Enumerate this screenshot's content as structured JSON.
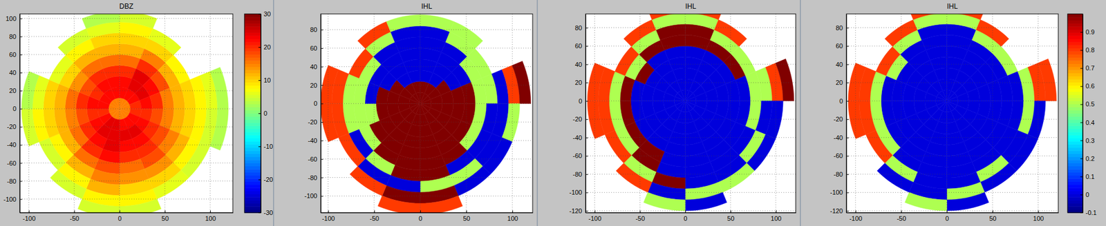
{
  "chart_data": [
    {
      "type": "heatmap",
      "title": "DBZ",
      "grid": true,
      "xlim": [
        -110,
        125
      ],
      "ylim": [
        -115,
        105
      ],
      "xticks": [
        -100,
        -50,
        0,
        50,
        100
      ],
      "yticks": [
        -100,
        -80,
        -60,
        -40,
        -20,
        0,
        20,
        40,
        60,
        80,
        100
      ],
      "azimuths": [
        0,
        22.5,
        45,
        67.5,
        90,
        112.5,
        135,
        157.5,
        180,
        202.5,
        225,
        247.5,
        270,
        292.5,
        315,
        337.5,
        360
      ],
      "ranges": [
        0,
        12,
        24,
        36,
        48,
        60,
        72,
        84,
        96,
        108,
        120
      ],
      "clim": [
        -30,
        30
      ],
      "colorbar_ticks": [
        -30,
        -20,
        -10,
        0,
        10,
        20,
        30
      ],
      "cells": [
        [
          15,
          22,
          22,
          20,
          16,
          12,
          10,
          8,
          5,
          null
        ],
        [
          15,
          22,
          24,
          24,
          20,
          15,
          10,
          6,
          null,
          null
        ],
        [
          15,
          22,
          24,
          22,
          18,
          12,
          8,
          null,
          null,
          null
        ],
        [
          15,
          20,
          22,
          20,
          15,
          12,
          10,
          8,
          6,
          3
        ],
        [
          15,
          20,
          20,
          18,
          15,
          12,
          10,
          8,
          5,
          3
        ],
        [
          15,
          22,
          22,
          20,
          18,
          15,
          12,
          8,
          5,
          null
        ],
        [
          15,
          22,
          24,
          22,
          20,
          18,
          14,
          10,
          6,
          null
        ],
        [
          15,
          22,
          24,
          22,
          20,
          16,
          14,
          10,
          8,
          5
        ],
        [
          15,
          24,
          24,
          24,
          22,
          18,
          15,
          12,
          8,
          5
        ],
        [
          15,
          24,
          24,
          22,
          20,
          16,
          12,
          8,
          5,
          null
        ],
        [
          15,
          22,
          22,
          20,
          16,
          12,
          8,
          5,
          null,
          null
        ],
        [
          15,
          20,
          20,
          18,
          15,
          12,
          10,
          8,
          5,
          null
        ],
        [
          15,
          22,
          22,
          20,
          16,
          12,
          10,
          6,
          3,
          null
        ],
        [
          15,
          22,
          20,
          18,
          14,
          10,
          6,
          null,
          null,
          null
        ],
        [
          15,
          22,
          22,
          20,
          16,
          12,
          8,
          5,
          null,
          null
        ],
        [
          15,
          22,
          22,
          20,
          16,
          12,
          10,
          6,
          3,
          null
        ]
      ]
    },
    {
      "type": "heatmap",
      "title": "IHL",
      "grid": true,
      "xlim": [
        -108,
        122
      ],
      "ylim": [
        -118,
        97
      ],
      "xticks": [
        -100,
        -50,
        0,
        50,
        100
      ],
      "yticks": [
        -100,
        -80,
        -60,
        -40,
        -20,
        0,
        20,
        40,
        60,
        80
      ],
      "azimuths": [
        0,
        22.5,
        45,
        67.5,
        90,
        112.5,
        135,
        157.5,
        180,
        202.5,
        225,
        247.5,
        270,
        292.5,
        315,
        337.5,
        360
      ],
      "ranges": [
        0,
        12,
        24,
        36,
        48,
        60,
        72,
        84,
        96,
        108,
        120
      ],
      "clim": [
        -0.1,
        1.0
      ],
      "cells": [
        [
          1,
          1,
          0,
          0,
          0,
          0,
          0,
          0.5,
          null,
          null
        ],
        [
          1,
          1,
          0,
          0,
          0,
          0,
          0.5,
          0.5,
          null,
          null
        ],
        [
          1,
          1,
          1,
          0,
          0,
          0.5,
          0.5,
          null,
          null,
          null
        ],
        [
          1,
          1,
          1,
          1,
          1,
          0.5,
          0.5,
          0,
          0.8,
          1
        ],
        [
          1,
          1,
          1,
          1,
          1,
          0.5,
          0,
          0,
          0.5,
          null
        ],
        [
          1,
          1,
          1,
          1,
          1,
          0.5,
          0,
          0,
          0,
          null
        ],
        [
          1,
          1,
          1,
          1,
          1,
          1,
          0,
          0.5,
          0,
          null
        ],
        [
          1,
          1,
          1,
          1,
          1,
          1,
          1,
          0.5,
          1,
          0.8
        ],
        [
          1,
          1,
          1,
          1,
          1,
          1,
          1,
          0,
          1,
          0.8
        ],
        [
          1,
          1,
          1,
          1,
          1,
          1,
          0.5,
          0,
          0.8,
          null
        ],
        [
          1,
          1,
          1,
          1,
          1,
          0.5,
          0,
          0.8,
          null,
          null
        ],
        [
          1,
          1,
          1,
          1,
          0.5,
          0.5,
          0.5,
          0.8,
          0.8,
          null
        ],
        [
          1,
          1,
          1,
          1,
          0,
          0.5,
          0.5,
          0.8,
          0.8,
          null
        ],
        [
          1,
          1,
          1,
          0,
          0,
          0.5,
          0.8,
          null,
          null,
          null
        ],
        [
          1,
          1,
          0,
          0,
          0,
          0,
          0.5,
          0.8,
          null,
          null
        ],
        [
          1,
          1,
          0,
          0,
          0,
          0,
          0,
          0.5,
          null,
          null
        ]
      ]
    },
    {
      "type": "heatmap",
      "title": "IHL",
      "grid": true,
      "xlim": [
        -110,
        122
      ],
      "ylim": [
        -122,
        95
      ],
      "xticks": [
        -100,
        -50,
        0,
        50,
        100
      ],
      "yticks": [
        -120,
        -100,
        -80,
        -60,
        -40,
        -20,
        0,
        20,
        40,
        60,
        80
      ],
      "azimuths": [
        0,
        22.5,
        45,
        67.5,
        90,
        112.5,
        135,
        157.5,
        180,
        202.5,
        225,
        247.5,
        270,
        292.5,
        315,
        337.5,
        360
      ],
      "ranges": [
        0,
        12,
        24,
        36,
        48,
        60,
        72,
        84,
        96,
        108,
        120
      ],
      "clim": [
        -0.1,
        1.0
      ],
      "cells": [
        [
          0,
          0,
          0,
          0,
          0,
          1,
          1,
          0.5,
          0.8,
          null
        ],
        [
          0,
          0,
          0,
          0,
          0,
          1,
          0.5,
          0.8,
          null,
          null
        ],
        [
          0,
          0,
          0,
          0,
          0,
          1,
          0.5,
          null,
          null,
          null
        ],
        [
          0,
          0,
          0,
          0,
          0,
          0,
          0.5,
          0.5,
          0.8,
          1
        ],
        [
          0,
          0,
          0,
          0,
          0,
          0,
          0.5,
          0,
          0,
          null
        ],
        [
          0,
          0,
          0,
          0,
          0,
          0,
          0,
          0.5,
          0,
          null
        ],
        [
          0,
          0,
          0,
          0,
          0,
          0,
          0,
          0,
          0.5,
          null
        ],
        [
          0,
          0,
          0,
          0,
          0,
          0,
          0,
          0,
          0.5,
          0
        ],
        [
          0,
          0,
          0,
          0,
          0,
          0,
          0,
          1,
          0,
          0.5
        ],
        [
          0,
          0,
          0,
          0,
          0,
          1,
          1,
          0.5,
          0.8,
          null
        ],
        [
          0,
          0,
          0,
          0,
          0,
          1,
          0.5,
          0.8,
          null,
          null
        ],
        [
          0,
          0,
          0,
          0,
          0,
          1,
          0.5,
          0.8,
          0.8,
          null
        ],
        [
          0,
          0,
          0,
          0,
          0,
          1,
          0.5,
          0.8,
          0.8,
          null
        ],
        [
          0,
          0,
          0,
          0,
          1,
          0.5,
          0.8,
          null,
          null,
          null
        ],
        [
          0,
          0,
          0,
          0,
          0,
          1,
          0.5,
          0.8,
          null,
          null
        ],
        [
          0,
          0,
          0,
          0,
          0,
          1,
          1,
          0.5,
          0.8,
          null
        ]
      ]
    },
    {
      "type": "heatmap",
      "title": "IHL",
      "grid": true,
      "xlim": [
        -110,
        122
      ],
      "ylim": [
        -122,
        95
      ],
      "xticks": [
        -100,
        -50,
        0,
        50,
        100
      ],
      "yticks": [
        -120,
        -100,
        -80,
        -60,
        -40,
        -20,
        0,
        20,
        40,
        60,
        80
      ],
      "azimuths": [
        0,
        22.5,
        45,
        67.5,
        90,
        112.5,
        135,
        157.5,
        180,
        202.5,
        225,
        247.5,
        270,
        292.5,
        315,
        337.5,
        360
      ],
      "ranges": [
        0,
        12,
        24,
        36,
        48,
        60,
        72,
        84,
        96,
        108,
        120
      ],
      "clim": [
        -0.1,
        1.0
      ],
      "colorbar_ticks": [
        -0.1,
        0,
        0.1,
        0.2,
        0.3,
        0.4,
        0.5,
        0.6,
        0.7,
        0.8,
        0.9
      ],
      "cells": [
        [
          0,
          0,
          0,
          0,
          0,
          0,
          0,
          0.5,
          0.8,
          null
        ],
        [
          0,
          0,
          0,
          0,
          0,
          0,
          0.5,
          0.8,
          null,
          null
        ],
        [
          0,
          0,
          0,
          0,
          0,
          0,
          0.5,
          null,
          null,
          null
        ],
        [
          0,
          0,
          0,
          0,
          0,
          0,
          0,
          0.5,
          0.8,
          0.8
        ],
        [
          0,
          0,
          0,
          0,
          0,
          0,
          0,
          0.5,
          0,
          null
        ],
        [
          0,
          0,
          0,
          0,
          0,
          0,
          0,
          0,
          0,
          null
        ],
        [
          0,
          0,
          0,
          0,
          0,
          0,
          0,
          0.5,
          0,
          null
        ],
        [
          0,
          0,
          0,
          0,
          0,
          0,
          0,
          0,
          0.5,
          0
        ],
        [
          0,
          0,
          0,
          0,
          0,
          0,
          0,
          0,
          0,
          0.5
        ],
        [
          0,
          0,
          0,
          0,
          0,
          0,
          0,
          0.5,
          0,
          null
        ],
        [
          0,
          0,
          0,
          0,
          0,
          0,
          0.5,
          0.8,
          null,
          null
        ],
        [
          0,
          0,
          0,
          0,
          0,
          0,
          0.5,
          0.8,
          0.8,
          null
        ],
        [
          0,
          0,
          0,
          0,
          0,
          0,
          0.5,
          0.8,
          0.8,
          null
        ],
        [
          0,
          0,
          0,
          0,
          0,
          0.5,
          0.8,
          null,
          null,
          null
        ],
        [
          0,
          0,
          0,
          0,
          0,
          0,
          0.5,
          0.8,
          null,
          null
        ],
        [
          0,
          0,
          0,
          0,
          0,
          0,
          0,
          0.5,
          0.8,
          null
        ]
      ]
    }
  ]
}
